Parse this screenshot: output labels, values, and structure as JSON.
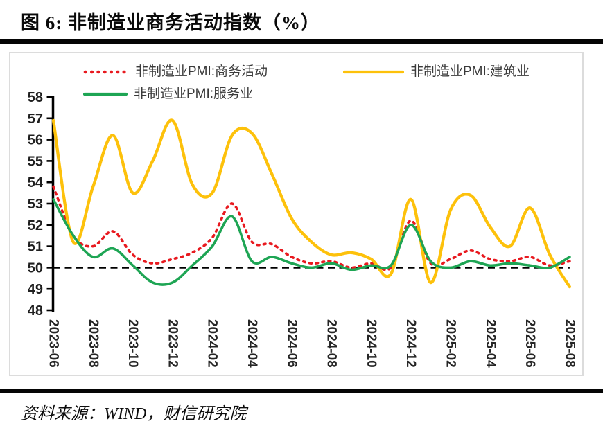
{
  "title": "图 6:  非制造业商务活动指数（%）",
  "source": "资料来源：WIND，财信研究院",
  "colors": {
    "business": "#e8191f",
    "construction": "#fdc10b",
    "services": "#1ea554",
    "reference_line": "#000000",
    "axis": "#000000"
  },
  "legend": [
    {
      "label": "非制造业PMI:商务活动",
      "color": "#e8191f",
      "style": "dashed"
    },
    {
      "label": "非制造业PMI:建筑业",
      "color": "#fdc10b",
      "style": "solid"
    },
    {
      "label": "非制造业PMI:服务业",
      "color": "#1ea554",
      "style": "solid"
    }
  ],
  "chart_data": {
    "type": "line",
    "title": "非制造业商务活动指数（%）",
    "x": [
      "2023-06",
      "2023-07",
      "2023-08",
      "2023-09",
      "2023-10",
      "2023-11",
      "2023-12",
      "2024-01",
      "2024-02",
      "2024-03",
      "2024-04",
      "2024-05",
      "2024-06",
      "2024-07",
      "2024-08",
      "2024-09",
      "2024-10",
      "2024-11",
      "2024-12",
      "2025-01",
      "2025-02",
      "2025-03",
      "2025-04",
      "2025-05",
      "2025-06",
      "2025-07",
      "2025-08"
    ],
    "x_tick_labels": [
      "2023-06",
      "2023-08",
      "2023-10",
      "2023-12",
      "2024-02",
      "2024-04",
      "2024-06",
      "2024-08",
      "2024-10",
      "2024-12",
      "2025-02",
      "2025-04",
      "2025-06",
      "2025-08"
    ],
    "y_ticks": [
      48,
      49,
      50,
      51,
      52,
      53,
      54,
      55,
      56,
      57,
      58
    ],
    "ylim": [
      48,
      58
    ],
    "reference_line_y": 50,
    "smooth": true,
    "grid": false,
    "legend_position": "top",
    "series": [
      {
        "name": "非制造业PMI:商务活动",
        "color": "#e8191f",
        "style": "dashed",
        "stroke_width": 3.6,
        "values": [
          53.8,
          51.5,
          51.0,
          51.7,
          50.6,
          50.2,
          50.4,
          50.7,
          51.4,
          53.0,
          51.2,
          51.1,
          50.5,
          50.2,
          50.3,
          50.0,
          50.2,
          50.0,
          52.2,
          50.2,
          50.4,
          50.8,
          50.4,
          50.3,
          50.5,
          50.1,
          50.3
        ]
      },
      {
        "name": "非制造业PMI:建筑业",
        "color": "#fdc10b",
        "style": "solid",
        "stroke_width": 4.3,
        "values": [
          56.9,
          51.2,
          53.8,
          56.2,
          53.5,
          55.0,
          56.9,
          53.9,
          53.5,
          56.2,
          56.3,
          54.4,
          52.3,
          51.2,
          50.6,
          50.7,
          50.4,
          49.7,
          53.2,
          49.3,
          52.7,
          53.4,
          51.9,
          51.0,
          52.8,
          50.6,
          49.1
        ]
      },
      {
        "name": "非制造业PMI:服务业",
        "color": "#1ea554",
        "style": "solid",
        "stroke_width": 3.6,
        "values": [
          53.2,
          51.5,
          50.5,
          50.9,
          50.1,
          49.3,
          49.3,
          50.1,
          51.0,
          52.4,
          50.3,
          50.5,
          50.2,
          50.0,
          50.2,
          49.9,
          50.1,
          50.1,
          52.0,
          50.3,
          50.0,
          50.3,
          50.1,
          50.2,
          50.1,
          50.0,
          50.5
        ]
      }
    ]
  }
}
